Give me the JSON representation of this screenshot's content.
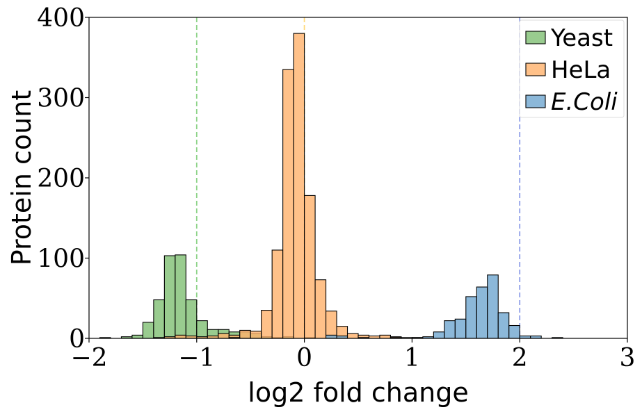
{
  "chart_data": {
    "type": "histogram",
    "title": "",
    "xlabel": "log2 fold change",
    "ylabel": "Protein count",
    "xlim": [
      -2,
      3
    ],
    "ylim": [
      0,
      400
    ],
    "xticks": [
      -2,
      -1,
      0,
      1,
      2,
      3
    ],
    "yticks": [
      0,
      100,
      200,
      300,
      400
    ],
    "xtick_labels": [
      "−2",
      "−1",
      "0",
      "1",
      "2",
      "3"
    ],
    "ytick_labels": [
      "0",
      "100",
      "200",
      "300",
      "400"
    ],
    "bin_width": 0.1,
    "legend_position": "top-right",
    "grid": false,
    "series": [
      {
        "name": "Yeast",
        "color": "#7fbf73",
        "bins": [
          {
            "x0": -1.9,
            "count": 1
          },
          {
            "x0": -1.7,
            "count": 2
          },
          {
            "x0": -1.6,
            "count": 4
          },
          {
            "x0": -1.5,
            "count": 20
          },
          {
            "x0": -1.4,
            "count": 48
          },
          {
            "x0": -1.3,
            "count": 103
          },
          {
            "x0": -1.2,
            "count": 104
          },
          {
            "x0": -1.1,
            "count": 48
          },
          {
            "x0": -1.0,
            "count": 22
          },
          {
            "x0": -0.9,
            "count": 11
          },
          {
            "x0": -0.8,
            "count": 11
          },
          {
            "x0": -0.7,
            "count": 8
          },
          {
            "x0": -0.6,
            "count": 8
          },
          {
            "x0": -0.5,
            "count": 6
          },
          {
            "x0": -0.4,
            "count": 2
          },
          {
            "x0": -0.3,
            "count": 1
          },
          {
            "x0": -0.2,
            "count": 2
          },
          {
            "x0": 0.0,
            "count": 1
          }
        ]
      },
      {
        "name": "HeLa",
        "color": "#ffb26b",
        "bins": [
          {
            "x0": -1.4,
            "count": 1
          },
          {
            "x0": -1.3,
            "count": 2
          },
          {
            "x0": -1.2,
            "count": 4
          },
          {
            "x0": -1.1,
            "count": 3
          },
          {
            "x0": -1.0,
            "count": 2
          },
          {
            "x0": -0.9,
            "count": 3
          },
          {
            "x0": -0.8,
            "count": 6
          },
          {
            "x0": -0.7,
            "count": 4
          },
          {
            "x0": -0.6,
            "count": 10
          },
          {
            "x0": -0.5,
            "count": 9
          },
          {
            "x0": -0.4,
            "count": 35
          },
          {
            "x0": -0.3,
            "count": 110
          },
          {
            "x0": -0.2,
            "count": 335
          },
          {
            "x0": -0.1,
            "count": 380
          },
          {
            "x0": 0.0,
            "count": 178
          },
          {
            "x0": 0.1,
            "count": 73
          },
          {
            "x0": 0.2,
            "count": 34
          },
          {
            "x0": 0.3,
            "count": 15
          },
          {
            "x0": 0.4,
            "count": 6
          },
          {
            "x0": 0.5,
            "count": 4
          },
          {
            "x0": 0.6,
            "count": 3
          },
          {
            "x0": 0.7,
            "count": 4
          },
          {
            "x0": 0.8,
            "count": 2
          },
          {
            "x0": 0.9,
            "count": 1
          },
          {
            "x0": 1.0,
            "count": 1
          }
        ]
      },
      {
        "name": "E.Coli",
        "color": "#6fa6d0",
        "bins": [
          {
            "x0": -0.7,
            "count": 1
          },
          {
            "x0": 0.2,
            "count": 4
          },
          {
            "x0": 0.3,
            "count": 3
          },
          {
            "x0": 0.5,
            "count": 1
          },
          {
            "x0": 0.8,
            "count": 1
          },
          {
            "x0": 1.0,
            "count": 1
          },
          {
            "x0": 1.1,
            "count": 2
          },
          {
            "x0": 1.2,
            "count": 8
          },
          {
            "x0": 1.3,
            "count": 22
          },
          {
            "x0": 1.4,
            "count": 24
          },
          {
            "x0": 1.5,
            "count": 52
          },
          {
            "x0": 1.6,
            "count": 64
          },
          {
            "x0": 1.7,
            "count": 79
          },
          {
            "x0": 1.8,
            "count": 32
          },
          {
            "x0": 1.9,
            "count": 16
          },
          {
            "x0": 2.0,
            "count": 3
          },
          {
            "x0": 2.1,
            "count": 3
          },
          {
            "x0": 2.3,
            "count": 1
          }
        ]
      }
    ],
    "reference_lines": [
      {
        "series": "Yeast",
        "x": -1,
        "color": "#8fd48a"
      },
      {
        "series": "HeLa",
        "x": 0,
        "color": "#ffd97a"
      },
      {
        "series": "E.Coli",
        "x": 2,
        "color": "#8f9ee8"
      }
    ]
  }
}
